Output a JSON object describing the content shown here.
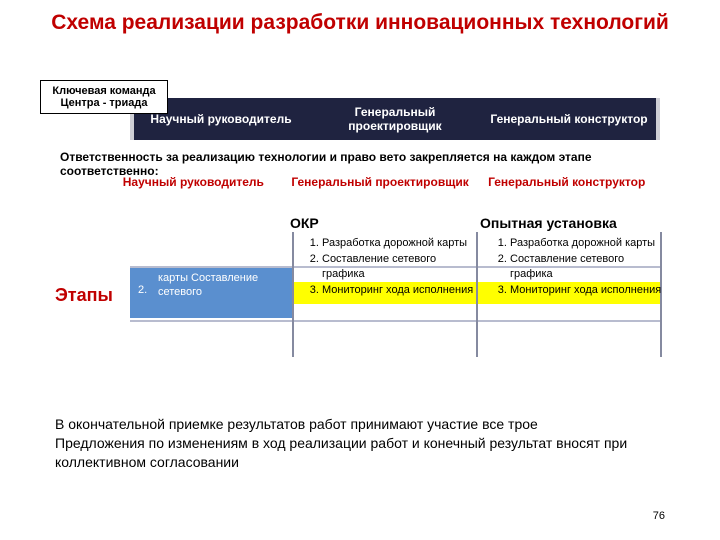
{
  "title": "Схема реализации разработки инновационных  технологий",
  "keyBox": "Ключевая команда Центра - триада",
  "band": {
    "cells": [
      "Научный руководитель",
      "Генеральный проектировщик",
      "Генеральный конструктор"
    ],
    "bg": "#1f2340",
    "color": "#ffffff"
  },
  "respLine": "Ответственность за реализацию технологии и право вето закрепляется на каждом этапе соответственно:",
  "redRoles": [
    "Научный руководитель",
    "Генеральный проектировщик",
    "Генеральный конструктор"
  ],
  "redColor": "#c00000",
  "phases": {
    "okr": "ОКР",
    "pilot": "Опытная установка"
  },
  "stagesLabel": "Этапы",
  "blueBar": {
    "num": "2.",
    "text": "карты\nСоставление сетевого",
    "bg": "#5a8fcf"
  },
  "yellow": "#ffff00",
  "listItems": [
    "Разработка дорожной карты",
    "Составление сетевого графика",
    "Мониторинг хода исполнения"
  ],
  "footer1": "В окончательной приемке результатов работ принимают участие все трое",
  "footer2": "Предложения по изменениям в ход реализации работ и конечный результат вносят при коллективном согласовании",
  "pageNum": "76",
  "colors": {
    "gridLine": "#b8bccf",
    "vLine": "#858aa0",
    "bg": "#ffffff"
  }
}
